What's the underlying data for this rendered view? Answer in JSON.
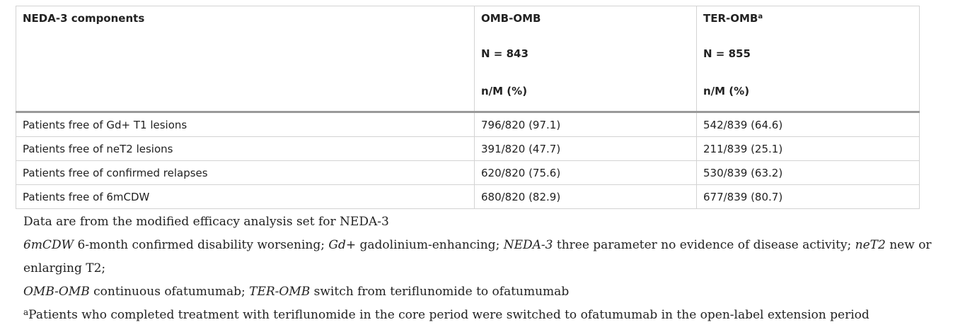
{
  "table": {
    "headers": {
      "col1": "NEDA-3 components",
      "col2": {
        "label": "OMB-OMB",
        "n": "N = 843",
        "unit": "n/M (%)"
      },
      "col3": {
        "label": "TER-OMB",
        "sup": "a",
        "n": "N = 855",
        "unit": "n/M (%)"
      }
    },
    "rows": [
      {
        "component": "Patients free of Gd+ T1 lesions",
        "omb_omb": "796/820 (97.1)",
        "ter_omb": "542/839 (64.6)"
      },
      {
        "component": "Patients free of neT2 lesions",
        "omb_omb": "391/820 (47.7)",
        "ter_omb": "211/839 (25.1)"
      },
      {
        "component": "Patients free of confirmed relapses",
        "omb_omb": "620/820 (75.6)",
        "ter_omb": "530/839 (63.2)"
      },
      {
        "component": "Patients free of 6mCDW",
        "omb_omb": "680/820 (82.9)",
        "ter_omb": "677/839 (80.7)"
      }
    ]
  },
  "footnotes": {
    "source": "Data are from the modified efficacy analysis set for NEDA-3",
    "abbreviations": [
      {
        "abbr": "6mCDW",
        "def": " 6-month confirmed disability worsening; "
      },
      {
        "abbr": "Gd+",
        "def": " gadolinium-enhancing; "
      },
      {
        "abbr": "NEDA-3",
        "def": " three parameter no evidence of disease activity; "
      },
      {
        "abbr": "neT2",
        "def": " new or enlarging T2; "
      },
      {
        "abbr": "OMB-OMB",
        "def": " continuous ofatumumab; "
      },
      {
        "abbr": "TER-OMB",
        "def": " switch from teriflunomide to ofatumumab"
      }
    ],
    "note_a": {
      "marker": "a",
      "text": "Patients who completed treatment with teriflunomide in the core period were switched to ofatumumab in the open-label extension period"
    }
  }
}
